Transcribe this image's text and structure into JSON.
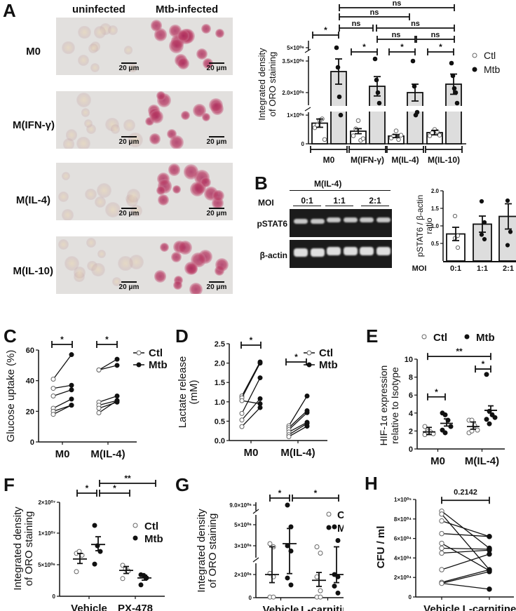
{
  "panels": {
    "A": {
      "letter": "A",
      "col_headers": [
        "uninfected",
        "Mtb-infected"
      ],
      "row_labels": [
        "M0",
        "M(IFN-γ)",
        "M(IL-4)",
        "M(IL-10)"
      ],
      "scale_bar": "20 μm"
    },
    "B": {
      "letter": "B",
      "group_label": "M(IL-4)",
      "moi_label": "MOI",
      "moi_values": [
        "0:1",
        "1:1",
        "2:1"
      ],
      "band_labels": [
        "pSTAT6",
        "β-actin"
      ]
    },
    "C": {
      "letter": "C"
    },
    "D": {
      "letter": "D"
    },
    "E": {
      "letter": "E"
    },
    "F": {
      "letter": "F"
    },
    "G": {
      "letter": "G"
    },
    "H": {
      "letter": "H"
    }
  },
  "legend": {
    "ctl": "Ctl",
    "mtb": "Mtb"
  },
  "chart_data": [
    {
      "id": "A-bar",
      "type": "bar",
      "ylabel": "Integrated density of ORO staining",
      "categories": [
        "M0",
        "M(IFN-γ)",
        "M(IL-4)",
        "M(IL-10)"
      ],
      "yticks": [
        "0",
        "1×10⁰⁶",
        "2.0×10⁰⁶",
        "3.5×10⁰⁶",
        "5×10⁰⁶"
      ],
      "axis_break": true,
      "series": [
        {
          "name": "Ctl",
          "values": [
            720000,
            440000,
            270000,
            390000
          ],
          "points": [
            [
              560000,
              650000,
              820000,
              870000,
              150000
            ],
            [
              280000,
              520000,
              810000,
              120000,
              180000
            ],
            [
              200000,
              280000,
              450000,
              150000,
              300000
            ],
            [
              280000,
              380000,
              500000,
              430000,
              300000
            ]
          ]
        },
        {
          "name": "Mtb",
          "values": [
            3000000,
            2300000,
            2000000,
            2400000
          ],
          "points": [
            [
              5200000,
              3200000,
              1800000,
              1000000
            ],
            [
              3600000,
              2600000,
              2000000,
              1500000
            ],
            [
              3500000,
              2300000,
              1000000,
              1100000
            ],
            [
              3400000,
              2800000,
              2200000,
              2000000,
              1500000
            ]
          ]
        }
      ],
      "annotations": [
        {
          "from": "M0-Ctl",
          "to": "M0-Mtb",
          "label": "*"
        },
        {
          "from": "M(IFN-γ)-Ctl",
          "to": "M(IFN-γ)-Mtb",
          "label": "*"
        },
        {
          "from": "M(IL-4)-Ctl",
          "to": "M(IL-4)-Mtb",
          "label": "*"
        },
        {
          "from": "M(IL-10)-Ctl",
          "to": "M(IL-10)-Mtb",
          "label": "*"
        },
        {
          "from": "M0-Mtb",
          "to": "M(IFN-γ)-Mtb",
          "label": "ns"
        },
        {
          "from": "M0-Mtb",
          "to": "M(IL-4)-Mtb",
          "label": "ns"
        },
        {
          "from": "M0-Mtb",
          "to": "M(IL-10)-Mtb",
          "label": "ns"
        },
        {
          "from": "M(IFN-γ)-Mtb",
          "to": "M(IL-10)-Mtb",
          "label": "ns"
        },
        {
          "from": "M(IFN-γ)-Mtb",
          "to": "M(IL-4)-Mtb",
          "label": "ns"
        },
        {
          "from": "M(IL-4)-Mtb",
          "to": "M(IL-10)-Mtb",
          "label": "ns"
        }
      ],
      "legend_position": "right"
    },
    {
      "id": "B-bar",
      "type": "bar",
      "ylabel": "pSTAT6 / β-actin ratio",
      "xlabel": "MOI",
      "categories": [
        "0:1",
        "1:1",
        "2:1"
      ],
      "values": [
        0.77,
        1.05,
        1.27
      ],
      "errors": [
        0.19,
        0.23,
        0.36
      ],
      "points": [
        [
          1.28,
          0.72,
          0.65,
          0.38
        ],
        [
          1.7,
          1.1,
          0.75,
          0.62
        ],
        [
          1.72,
          0.83,
          0.45
        ]
      ],
      "ylim": [
        0,
        2.0
      ],
      "yticks": [
        "0.5",
        "1.0",
        "1.5",
        "2.0"
      ]
    },
    {
      "id": "C-paired",
      "type": "line",
      "ylabel": "Glucose uptake (%)",
      "categories": [
        "M0",
        "M(IL-4)"
      ],
      "ylim": [
        0,
        60
      ],
      "yticks": [
        "0",
        "20",
        "40",
        "60"
      ],
      "pairs": {
        "M0": [
          [
            41,
            57
          ],
          [
            35,
            37
          ],
          [
            30,
            34
          ],
          [
            22,
            28
          ],
          [
            20,
            24
          ],
          [
            18,
            24
          ]
        ],
        "M(IL-4)": [
          [
            47,
            54
          ],
          [
            47,
            50
          ],
          [
            26,
            30
          ],
          [
            24,
            27
          ],
          [
            22,
            26
          ],
          [
            19,
            27
          ]
        ]
      },
      "annotations": [
        {
          "group": "M0",
          "label": "*"
        },
        {
          "group": "M(IL-4)",
          "label": "*"
        }
      ],
      "legend": [
        "Ctl",
        "Mtb"
      ]
    },
    {
      "id": "D-paired",
      "type": "line",
      "ylabel": "Lactate release (mM)",
      "categories": [
        "M0",
        "M(IL-4)"
      ],
      "ylim": [
        0,
        2.5
      ],
      "yticks": [
        "0.0",
        "0.5",
        "1.0",
        "1.5",
        "2.0",
        "2.5"
      ],
      "pairs": {
        "M0": [
          [
            1.15,
            2.03
          ],
          [
            1.1,
            2.0
          ],
          [
            1.03,
            0.95
          ],
          [
            0.7,
            1.62
          ],
          [
            0.53,
            1.08
          ],
          [
            0.36,
            0.85
          ]
        ],
        "M(IL-4)": [
          [
            0.38,
            1.15
          ],
          [
            0.33,
            0.77
          ],
          [
            0.28,
            0.72
          ],
          [
            0.22,
            0.47
          ],
          [
            0.15,
            0.44
          ],
          [
            0.1,
            0.37
          ]
        ]
      },
      "annotations": [
        {
          "group": "M0",
          "label": "*"
        },
        {
          "group": "M(IL-4)",
          "label": "*"
        }
      ],
      "legend": [
        "Ctl",
        "Mtb"
      ]
    },
    {
      "id": "E-scatter",
      "type": "scatter",
      "ylabel": "HIF-1α expression relative to Isotype",
      "categories": [
        "M0",
        "M(IL-4)"
      ],
      "ylim": [
        0,
        10
      ],
      "yticks": [
        "0",
        "2",
        "4",
        "6",
        "8",
        "10"
      ],
      "series": [
        {
          "name": "Ctl",
          "means": [
            1.9,
            2.5
          ],
          "points": [
            [
              2.5,
              2.1,
              1.9,
              1.7,
              1.6,
              1.9
            ],
            [
              3.2,
              3.2,
              2.6,
              2.1,
              1.8,
              2.0
            ]
          ]
        },
        {
          "name": "Mtb",
          "means": [
            2.85,
            4.3
          ],
          "points": [
            [
              4.0,
              3.8,
              3.2,
              2.5,
              2.1,
              1.8
            ],
            [
              8.3,
              4.2,
              3.8,
              3.5,
              3.3,
              2.8
            ]
          ]
        }
      ],
      "annotations": [
        {
          "label": "*",
          "between": "M0 Ctl-Mtb"
        },
        {
          "label": "*",
          "between": "M(IL-4) Ctl-Mtb"
        },
        {
          "label": "**",
          "between": "M0 Ctl - M(IL-4) Mtb"
        }
      ],
      "legend_position": "top"
    },
    {
      "id": "F-scatter",
      "type": "scatter",
      "ylabel": "Integrated density of ORO staining",
      "categories": [
        "Vehicle",
        "PX-478"
      ],
      "yticks": [
        "0",
        "5×10⁰⁶",
        "1×10⁰⁷",
        "2×10⁰⁷"
      ],
      "series": [
        {
          "name": "Ctl",
          "means": [
            5900000,
            4100000
          ],
          "points": [
            [
              6800000,
              7100000,
              6500000,
              3900000
            ],
            [
              4900000,
              4300000,
              4000000,
              2800000
            ]
          ]
        },
        {
          "name": "Mtb",
          "means": [
            8200000,
            2900000
          ],
          "points": [
            [
              12500000,
              8000000,
              7100000,
              5100000
            ],
            [
              3400000,
              3300000,
              2900000,
              1800000
            ]
          ]
        }
      ],
      "annotations": [
        {
          "label": "*",
          "between": "Vehicle Ctl-Mtb"
        },
        {
          "label": "*",
          "between": "Vehicle Mtb - PX-478 Ctl"
        },
        {
          "label": "**",
          "between": "Vehicle Mtb - PX-478 Mtb"
        }
      ]
    },
    {
      "id": "G-scatter",
      "type": "scatter",
      "ylabel": "Integrated density of ORO staining",
      "categories": [
        "Vehicle",
        "L-carnitine"
      ],
      "yticks": [
        "0",
        "2×10⁰⁶",
        "3×10⁰⁶",
        "5×10⁰⁶",
        "9.0×10⁰⁶"
      ],
      "axis_break": true,
      "series": [
        {
          "name": "Ctl",
          "means": [
            2000000,
            1500000
          ],
          "points": [
            [
              3200000,
              2900000,
              2100000,
              1800000,
              50000,
              50000
            ],
            [
              2900000,
              2300000,
              1800000,
              600000,
              50000,
              50000
            ]
          ]
        },
        {
          "name": "Mtb",
          "means": [
            3200000,
            2000000
          ],
          "points": [
            [
              9000000,
              4800000,
              3000000,
              2500000,
              1700000,
              1100000
            ],
            [
              4800000,
              3500000,
              2000000,
              1800000,
              1000000,
              400000
            ]
          ]
        }
      ],
      "annotations": [
        {
          "label": "*",
          "between": "Vehicle Ctl-Mtb"
        },
        {
          "label": "*",
          "between": "Vehicle Mtb - L-carnitine Mtb"
        }
      ]
    },
    {
      "id": "H-paired",
      "type": "line",
      "ylabel": "CFU / ml",
      "categories": [
        "Vehicle",
        "L-carnitine"
      ],
      "ylim": [
        0,
        100000
      ],
      "yticks": [
        "0",
        "2×10⁰⁴",
        "4×10⁰⁴",
        "6×10⁰⁴",
        "8×10⁰⁴",
        "1×10⁰⁵"
      ],
      "pairs": [
        [
          88000,
          50000
        ],
        [
          85000,
          28000
        ],
        [
          78000,
          62000
        ],
        [
          65000,
          62000
        ],
        [
          55000,
          27000
        ],
        [
          50000,
          49000
        ],
        [
          45000,
          48000
        ],
        [
          28000,
          44000
        ],
        [
          15000,
          28000
        ],
        [
          14000,
          26000
        ],
        [
          14000,
          8000
        ]
      ],
      "annotations": [
        {
          "label": "0.2142",
          "between": "Vehicle - L-carnitine"
        }
      ]
    }
  ]
}
